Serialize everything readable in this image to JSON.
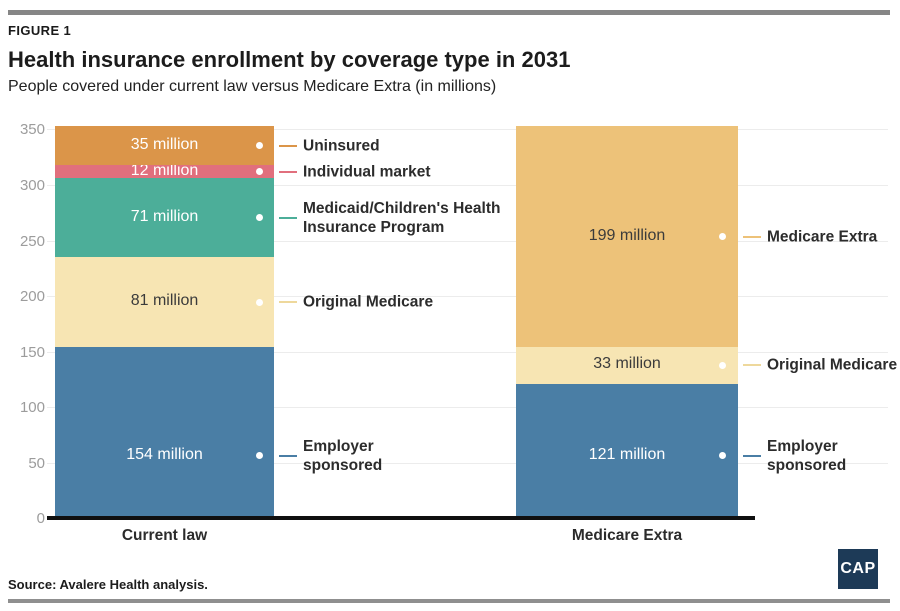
{
  "header": {
    "figure_label": "FIGURE 1",
    "title": "Health insurance enrollment by coverage type in 2031",
    "subtitle": "People covered under current law versus Medicare Extra (in millions)"
  },
  "footer": {
    "source": "Source: Avalere Health analysis.",
    "logo_text": "CAP",
    "logo_color": "#1d3a57"
  },
  "chart_data": {
    "type": "bar",
    "stacked": true,
    "title": "Health insurance enrollment by coverage type in 2031",
    "subtitle": "People covered under current law versus Medicare Extra (in millions)",
    "unit": "million",
    "ylim": [
      0,
      350
    ],
    "yticks": [
      0,
      50,
      100,
      150,
      200,
      250,
      300,
      350
    ],
    "grid": true,
    "categories": [
      "Current law",
      "Medicare Extra"
    ],
    "bars": [
      {
        "category": "Current law",
        "total": 353,
        "segments": [
          {
            "label": "Employer sponsored",
            "label_lines": [
              "Employer",
              "sponsored"
            ],
            "value": 154,
            "value_label": "154 million",
            "color": "#4a7ea5",
            "text_color": "#ffffff",
            "connector_color": "#4a7ea5",
            "label_at": 56
          },
          {
            "label": "Original Medicare",
            "label_lines": [
              "Original Medicare"
            ],
            "value": 81,
            "value_label": "81 million",
            "color": "#f7e5b3",
            "text_color": "#3b3b3b",
            "connector_color": "#eed89c"
          },
          {
            "label": "Medicaid/Children's Health Insurance Program",
            "label_lines": [
              "Medicaid/Children's Health",
              "Insurance Program"
            ],
            "value": 71,
            "value_label": "71 million",
            "color": "#4cae99",
            "text_color": "#ffffff",
            "connector_color": "#4cae99"
          },
          {
            "label": "Individual market",
            "label_lines": [
              "Individual market"
            ],
            "value": 12,
            "value_label": "12 million",
            "color": "#e16f7d",
            "text_color": "#ffffff",
            "connector_color": "#e16f7d"
          },
          {
            "label": "Uninsured",
            "label_lines": [
              "Uninsured"
            ],
            "value": 35,
            "value_label": "35 million",
            "color": "#db9549",
            "text_color": "#ffffff",
            "connector_color": "#db9549"
          }
        ]
      },
      {
        "category": "Medicare Extra",
        "total": 353,
        "segments": [
          {
            "label": "Employer sponsored",
            "label_lines": [
              "Employer",
              "sponsored"
            ],
            "value": 121,
            "value_label": "121 million",
            "color": "#4a7ea5",
            "text_color": "#ffffff",
            "connector_color": "#4a7ea5",
            "label_at": 56
          },
          {
            "label": "Original Medicare",
            "label_lines": [
              "Original Medicare"
            ],
            "value": 33,
            "value_label": "33 million",
            "color": "#f7e5b3",
            "text_color": "#3b3b3b",
            "connector_color": "#eed89c"
          },
          {
            "label": "Medicare Extra",
            "label_lines": [
              "Medicare Extra"
            ],
            "value": 199,
            "value_label": "199 million",
            "color": "#edc279",
            "text_color": "#3b3b3b",
            "connector_color": "#edc279"
          }
        ]
      }
    ]
  }
}
